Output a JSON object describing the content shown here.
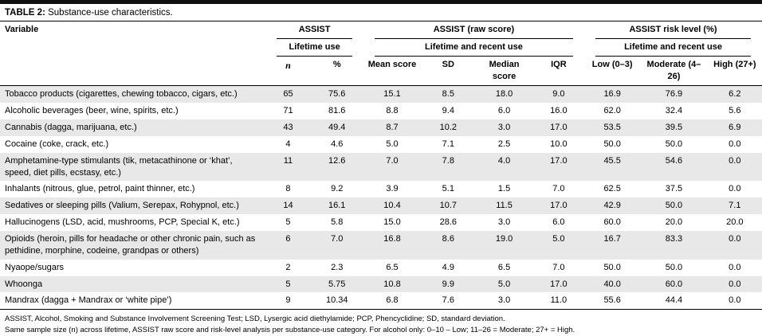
{
  "colors": {
    "top_bar": "#101010",
    "zebra_row": "#e8e8e8"
  },
  "page": {
    "title_prefix": "TABLE 2:",
    "title_rest": "Substance-use characteristics."
  },
  "table": {
    "variable_header": "Variable",
    "groups": [
      {
        "label": "ASSIST",
        "sub": "Lifetime use"
      },
      {
        "label": "ASSIST (raw score)",
        "sub": "Lifetime and recent use"
      },
      {
        "label": "ASSIST risk level (%)",
        "sub": "Lifetime and recent use"
      }
    ],
    "columns": [
      "n",
      "%",
      "Mean score",
      "SD",
      "Median score",
      "IQR",
      "Low (0–3)",
      "Moderate (4–26)",
      "High (27+)"
    ],
    "rows": [
      {
        "variable": "Tobacco products (cigarettes, chewing tobacco, cigars, etc.)",
        "values": [
          "65",
          "75.6",
          "15.1",
          "8.5",
          "18.0",
          "9.0",
          "16.9",
          "76.9",
          "6.2"
        ]
      },
      {
        "variable": "Alcoholic beverages (beer, wine, spirits, etc.)",
        "values": [
          "71",
          "81.6",
          "8.8",
          "9.4",
          "6.0",
          "16.0",
          "62.0",
          "32.4",
          "5.6"
        ]
      },
      {
        "variable": "Cannabis (dagga, marijuana, etc.)",
        "values": [
          "43",
          "49.4",
          "8.7",
          "10.2",
          "3.0",
          "17.0",
          "53.5",
          "39.5",
          "6.9"
        ]
      },
      {
        "variable": "Cocaine (coke, crack, etc.)",
        "values": [
          "4",
          "4.6",
          "5.0",
          "7.1",
          "2.5",
          "10.0",
          "50.0",
          "50.0",
          "0.0"
        ]
      },
      {
        "variable": "Amphetamine-type stimulants (tik, metacathinone or ‘khat’, speed, diet pills, ecstasy, etc.)",
        "values": [
          "11",
          "12.6",
          "7.0",
          "7.8",
          "4.0",
          "17.0",
          "45.5",
          "54.6",
          "0.0"
        ]
      },
      {
        "variable": "Inhalants (nitrous, glue, petrol, paint thinner, etc.)",
        "values": [
          "8",
          "9.2",
          "3.9",
          "5.1",
          "1.5",
          "7.0",
          "62.5",
          "37.5",
          "0.0"
        ]
      },
      {
        "variable": "Sedatives or sleeping pills (Valium, Serepax, Rohypnol, etc.)",
        "values": [
          "14",
          "16.1",
          "10.4",
          "10.7",
          "11.5",
          "17.0",
          "42.9",
          "50.0",
          "7.1"
        ]
      },
      {
        "variable": "Hallucinogens (LSD, acid, mushrooms, PCP, Special K, etc.)",
        "values": [
          "5",
          "5.8",
          "15.0",
          "28.6",
          "3.0",
          "6.0",
          "60.0",
          "20.0",
          "20.0"
        ]
      },
      {
        "variable": "Opioids (heroin, pills for headache or other chronic pain, such as pethidine, morphine, codeine, grandpas or others)",
        "values": [
          "6",
          "7.0",
          "16.8",
          "8.6",
          "19.0",
          "5.0",
          "16.7",
          "83.3",
          "0.0"
        ]
      },
      {
        "variable": "Nyaope/sugars",
        "values": [
          "2",
          "2.3",
          "6.5",
          "4.9",
          "6.5",
          "7.0",
          "50.0",
          "50.0",
          "0.0"
        ]
      },
      {
        "variable": "Whoonga",
        "values": [
          "5",
          "5.75",
          "10.8",
          "9.9",
          "5.0",
          "17.0",
          "40.0",
          "60.0",
          "0.0"
        ]
      },
      {
        "variable": "Mandrax (dagga + Mandrax or ‘white pipe’)",
        "values": [
          "9",
          "10.34",
          "6.8",
          "7.6",
          "3.0",
          "11.0",
          "55.6",
          "44.4",
          "0.0"
        ]
      }
    ]
  },
  "footnotes": [
    "ASSIST, Alcohol, Smoking and Substance Involvement Screening Test; LSD, Lysergic acid diethylamide; PCP, Phencyclidine; SD, standard deviation.",
    "Same sample size (n) across lifetime, ASSIST raw score and risk-level analysis per substance-use category. For alcohol only: 0–10 – Low; 11–26 = Moderate; 27+ = High."
  ]
}
